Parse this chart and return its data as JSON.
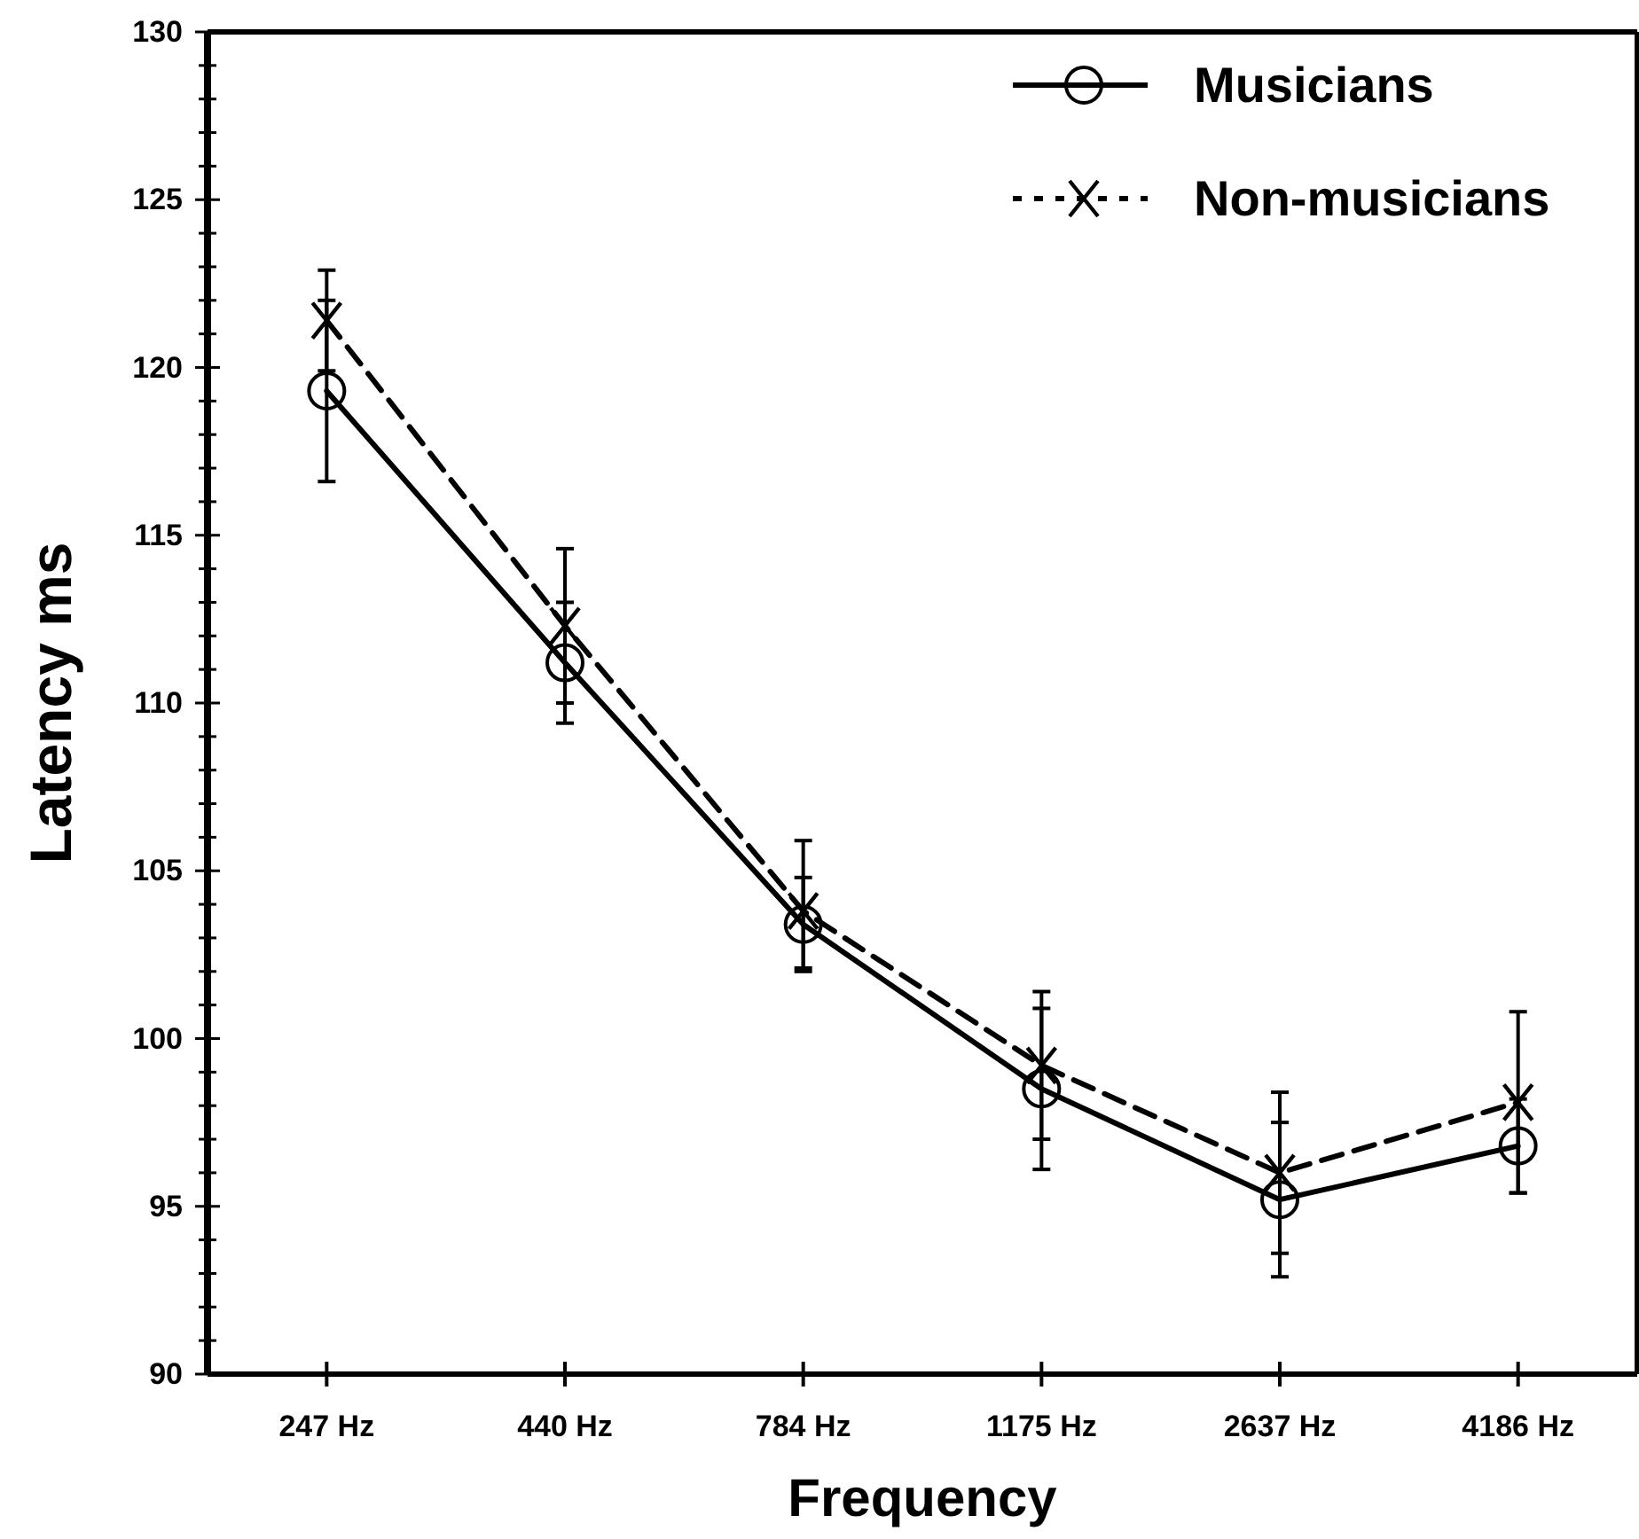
{
  "chart_data": {
    "type": "line",
    "xlabel": "Frequency",
    "ylabel": "Latency ms",
    "categories": [
      "247 Hz",
      "440 Hz",
      "784 Hz",
      "1175 Hz",
      "2637 Hz",
      "4186 Hz"
    ],
    "series": [
      {
        "name": "Musicians",
        "color": "#000000",
        "marker": "circle",
        "line_style": "solid",
        "values": [
          119.3,
          111.2,
          103.4,
          98.5,
          95.2,
          96.8
        ],
        "errors": [
          2.7,
          1.8,
          1.4,
          2.4,
          2.3,
          1.4
        ]
      },
      {
        "name": "Non-musicians",
        "color": "#000000",
        "marker": "cross",
        "line_style": "dashed",
        "values": [
          121.4,
          112.3,
          103.8,
          99.2,
          96.0,
          98.1
        ],
        "errors": [
          1.5,
          2.3,
          [
            102.1,
            105.9
          ],
          2.2,
          2.4,
          2.7
        ]
      }
    ],
    "ylim": [
      90,
      130
    ],
    "yticks": [
      90,
      {
        "value": 91,
        "label": null
      },
      {
        "value": 92,
        "label": null
      },
      {
        "value": 93,
        "label": null
      },
      {
        "value": 94,
        "label": null
      },
      95,
      {
        "value": 96,
        "label": null
      },
      {
        "value": 97,
        "label": null
      },
      {
        "value": 98,
        "label": null
      },
      {
        "value": 99,
        "label": null
      },
      100,
      {
        "value": 101,
        "label": null
      },
      {
        "value": 102,
        "label": null
      },
      {
        "value": 103,
        "label": null
      },
      {
        "value": 104,
        "label": null
      },
      105,
      {
        "value": 106,
        "label": null
      },
      {
        "value": 107,
        "label": null
      },
      {
        "value": 108,
        "label": null
      },
      {
        "value": 109,
        "label": null
      },
      110,
      {
        "value": 111,
        "label": null
      },
      {
        "value": 112,
        "label": null
      },
      {
        "value": 113,
        "label": null
      },
      {
        "value": 114,
        "label": null
      },
      115,
      {
        "value": 116,
        "label": null
      },
      {
        "value": 117,
        "label": null
      },
      {
        "value": 118,
        "label": null
      },
      {
        "value": 119,
        "label": null
      },
      120,
      {
        "value": 121,
        "label": null
      },
      {
        "value": 122,
        "label": null
      },
      {
        "value": 123,
        "label": null
      },
      {
        "value": 124,
        "label": null
      },
      125,
      {
        "value": 126,
        "label": null
      },
      {
        "value": 127,
        "label": null
      },
      {
        "value": 128,
        "label": null
      },
      {
        "value": 129,
        "label": null
      },
      130
    ],
    "grid": false,
    "legend": "top right"
  }
}
